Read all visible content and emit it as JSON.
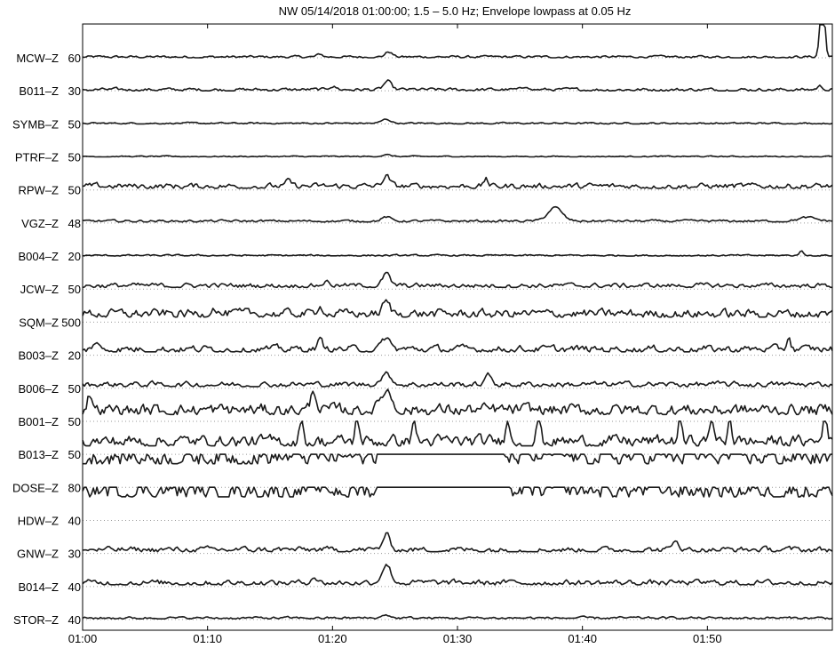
{
  "chart_data": {
    "type": "line",
    "title": "NW   05/14/2018 01:00:00;  1.5 – 5.0 Hz; Envelope lowpass at 0.05 Hz",
    "x_ticks": [
      "01:00",
      "01:10",
      "01:20",
      "01:30",
      "01:40",
      "01:50"
    ],
    "x_tick_minutes": [
      0,
      10,
      20,
      30,
      40,
      50
    ],
    "x_range_minutes": [
      0,
      60
    ],
    "grid": "dotted baseline per trace",
    "series": [
      {
        "name": "MCW–Z",
        "scale": "60",
        "bumps": [
          [
            24.5,
            0.15,
            0.4
          ],
          [
            19,
            0.08,
            0.3
          ],
          [
            59.2,
            2.0,
            0.25
          ]
        ],
        "noise": 0.06,
        "level": 0
      },
      {
        "name": "B011–Z",
        "scale": "30",
        "bumps": [
          [
            24.4,
            0.25,
            0.4
          ],
          [
            20,
            0.1,
            0.4
          ],
          [
            35.5,
            0.1,
            0.3
          ],
          [
            59,
            0.1,
            0.3
          ]
        ],
        "noise": 0.08,
        "level": 0
      },
      {
        "name": "SYMB–Z",
        "scale": "50",
        "bumps": [
          [
            24.3,
            0.12,
            0.5
          ]
        ],
        "noise": 0.04,
        "level": 0
      },
      {
        "name": "PTRF–Z",
        "scale": "50",
        "bumps": [
          [
            24.3,
            0.05,
            0.5
          ]
        ],
        "noise": 0.03,
        "level": 0
      },
      {
        "name": "RPW–Z",
        "scale": "50",
        "bumps": [
          [
            24.3,
            0.3,
            0.4
          ],
          [
            32.3,
            0.25,
            0.2
          ],
          [
            16.5,
            0.15,
            0.3
          ]
        ],
        "noise": 0.14,
        "level": 0.05
      },
      {
        "name": "VGZ–Z",
        "scale": "48",
        "bumps": [
          [
            37.8,
            0.4,
            0.8
          ],
          [
            24.3,
            0.12,
            0.5
          ],
          [
            58,
            0.1,
            1
          ]
        ],
        "noise": 0.06,
        "level": 0.03
      },
      {
        "name": "B004–Z",
        "scale": "20",
        "bumps": [
          [
            57.5,
            0.15,
            0.2
          ]
        ],
        "noise": 0.04,
        "level": 0
      },
      {
        "name": "JCW–Z",
        "scale": "50",
        "bumps": [
          [
            24.3,
            0.35,
            0.4
          ],
          [
            19.5,
            0.12,
            0.4
          ]
        ],
        "noise": 0.12,
        "level": 0.05
      },
      {
        "name": "SQM–Z",
        "scale": "500",
        "bumps": [
          [
            24.3,
            0.35,
            0.4
          ],
          [
            10.5,
            0.2,
            0.3
          ],
          [
            19,
            0.25,
            0.3
          ]
        ],
        "noise": 0.22,
        "level": 0.15
      },
      {
        "name": "B003–Z",
        "scale": "20",
        "bumps": [
          [
            24.3,
            0.35,
            0.4
          ],
          [
            56.5,
            0.4,
            0.2
          ],
          [
            19,
            0.25,
            0.3
          ],
          [
            1,
            0.2,
            0.3
          ]
        ],
        "noise": 0.18,
        "level": 0.1
      },
      {
        "name": "B006–Z",
        "scale": "50",
        "bumps": [
          [
            24.3,
            0.3,
            0.6
          ],
          [
            32.5,
            0.25,
            0.4
          ]
        ],
        "noise": 0.14,
        "level": 0.05
      },
      {
        "name": "B001–Z",
        "scale": "50",
        "bumps": [
          [
            18.5,
            0.6,
            0.3
          ],
          [
            24.3,
            0.6,
            0.6
          ],
          [
            0.6,
            0.5,
            0.3
          ]
        ],
        "noise": 0.3,
        "level": 0.2
      },
      {
        "name": "B013–Z",
        "scale": "50",
        "bumps": [
          [
            59.4,
            1.0,
            0.2
          ],
          [
            17.5,
            0.7,
            0.2
          ],
          [
            22,
            0.8,
            0.2
          ],
          [
            26.5,
            0.7,
            0.2
          ],
          [
            34,
            0.8,
            0.2
          ],
          [
            36.5,
            0.8,
            0.2
          ],
          [
            47.8,
            0.8,
            0.2
          ],
          [
            50.3,
            0.8,
            0.2
          ],
          [
            51.8,
            0.8,
            0.2
          ]
        ],
        "noise": 0.3,
        "level": 0.25
      },
      {
        "name": "DOSE–Z",
        "scale": "80",
        "bumps": [],
        "noise": 0.45,
        "level": 0.7,
        "clip": [
          [
            23.5,
            33.5
          ]
        ]
      },
      {
        "name": "HDW–Z",
        "scale": "40",
        "bumps": [],
        "noise": 0.45,
        "level": 0.7,
        "clip": [
          [
            23.5,
            33.5
          ]
        ]
      },
      {
        "name": "GNW–Z",
        "scale": "30",
        "bumps": [
          [
            24.3,
            0.45,
            0.4
          ],
          [
            47.5,
            0.3,
            0.3
          ]
        ],
        "noise": 0.14,
        "level": 0.05
      },
      {
        "name": "B014–Z",
        "scale": "40",
        "bumps": [
          [
            24.3,
            0.55,
            0.5
          ],
          [
            18.5,
            0.2,
            0.3
          ]
        ],
        "noise": 0.14,
        "level": 0.05
      },
      {
        "name": "STOR–Z",
        "scale": "40",
        "bumps": [
          [
            24.3,
            0.1,
            0.4
          ]
        ],
        "noise": 0.06,
        "level": 0.02
      }
    ]
  }
}
